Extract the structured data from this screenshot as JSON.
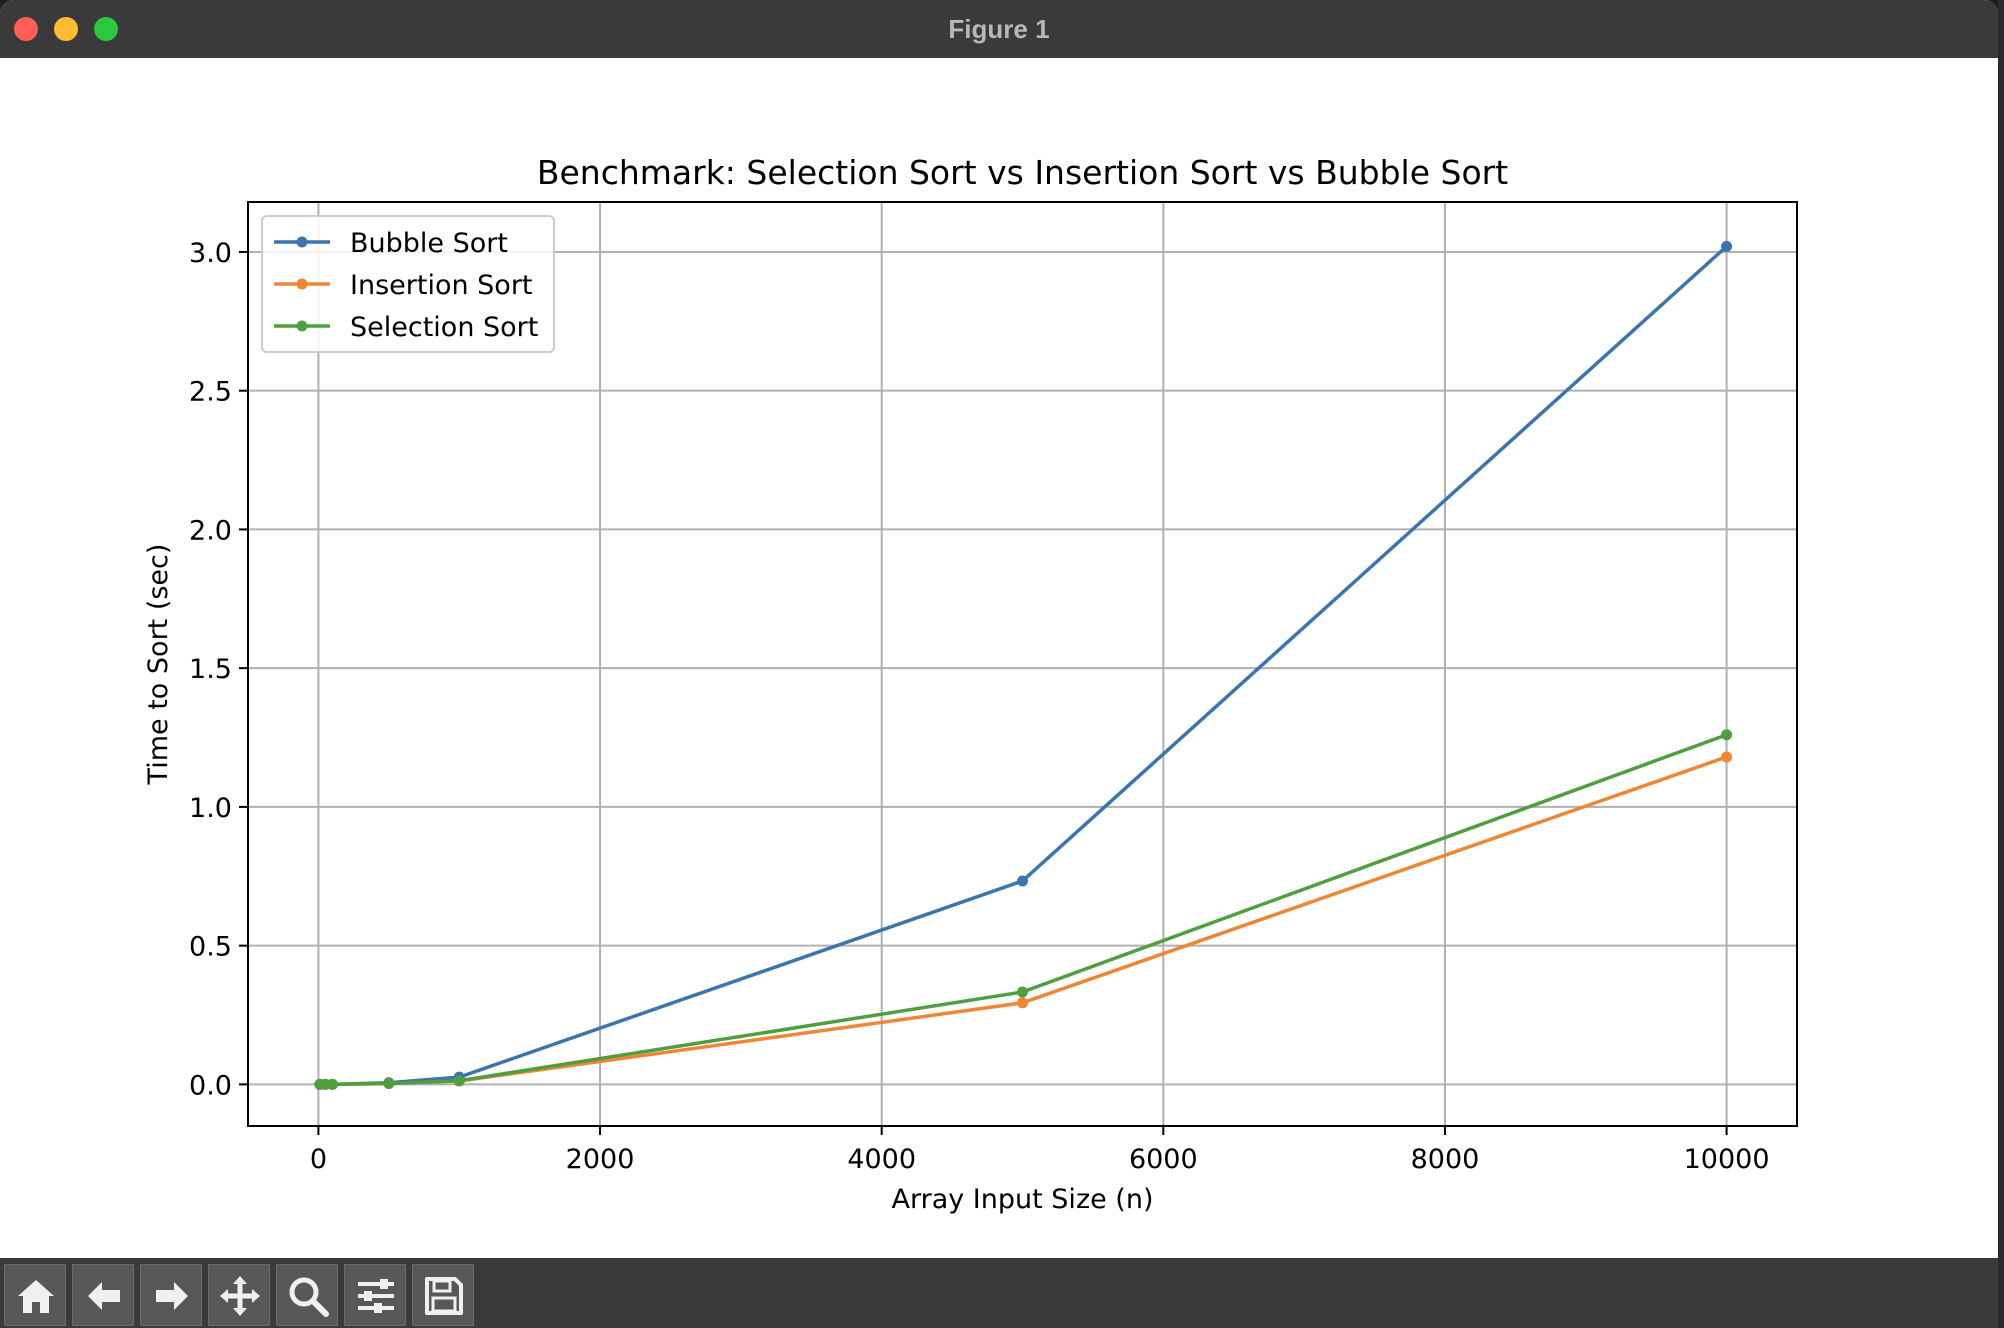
{
  "window": {
    "title": "Figure 1"
  },
  "toolbar": {
    "buttons": [
      {
        "name": "home-button",
        "icon": "home-icon"
      },
      {
        "name": "back-button",
        "icon": "arrow-left-icon"
      },
      {
        "name": "forward-button",
        "icon": "arrow-right-icon"
      },
      {
        "name": "pan-button",
        "icon": "move-icon"
      },
      {
        "name": "zoom-button",
        "icon": "magnifier-icon"
      },
      {
        "name": "configure-subplots-button",
        "icon": "sliders-icon"
      },
      {
        "name": "save-button",
        "icon": "floppy-disk-icon"
      }
    ]
  },
  "chart_data": {
    "type": "line",
    "title": "Benchmark: Selection Sort vs Insertion Sort vs Bubble Sort",
    "xlabel": "Array Input Size (n)",
    "ylabel": "Time to Sort (sec)",
    "xlim": [
      -500,
      10500
    ],
    "ylim": [
      -0.15,
      3.18
    ],
    "xticks": [
      0,
      2000,
      4000,
      6000,
      8000,
      10000
    ],
    "xtick_labels": [
      "0",
      "2000",
      "4000",
      "6000",
      "8000",
      "10000"
    ],
    "yticks": [
      0.0,
      0.5,
      1.0,
      1.5,
      2.0,
      2.5,
      3.0
    ],
    "ytick_labels": [
      "0.0",
      "0.5",
      "1.0",
      "1.5",
      "2.0",
      "2.5",
      "3.0"
    ],
    "grid": true,
    "legend": "upper-left",
    "series": [
      {
        "name": "Bubble Sort",
        "color": "#3b75af",
        "x": [
          10,
          50,
          100,
          500,
          1000,
          5000,
          10000
        ],
        "y": [
          0.0,
          0.0,
          0.0,
          0.006,
          0.026,
          0.733,
          3.02
        ]
      },
      {
        "name": "Insertion Sort",
        "color": "#ef8636",
        "x": [
          10,
          50,
          100,
          500,
          1000,
          5000,
          10000
        ],
        "y": [
          0.0,
          0.0,
          0.0,
          0.003,
          0.012,
          0.294,
          1.18
        ]
      },
      {
        "name": "Selection Sort",
        "color": "#519e3e",
        "x": [
          10,
          50,
          100,
          500,
          1000,
          5000,
          10000
        ],
        "y": [
          0.0,
          0.0,
          0.0,
          0.003,
          0.013,
          0.333,
          1.26
        ]
      }
    ]
  }
}
